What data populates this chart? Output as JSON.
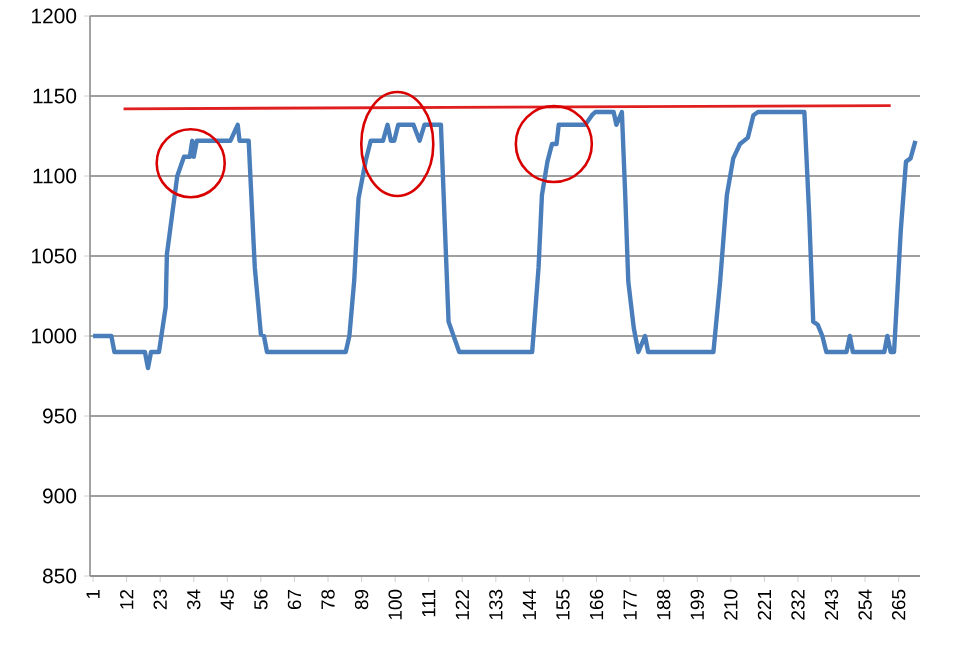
{
  "chart_data": {
    "type": "line",
    "xlim": [
      0,
      272
    ],
    "ylim": [
      850,
      1200
    ],
    "xticks": [
      1,
      12,
      23,
      34,
      45,
      56,
      67,
      78,
      89,
      100,
      111,
      122,
      133,
      144,
      155,
      166,
      177,
      188,
      199,
      210,
      221,
      232,
      243,
      254,
      265
    ],
    "yticks": [
      850,
      900,
      950,
      1000,
      1050,
      1100,
      1150,
      1200
    ],
    "grid": "y",
    "marker": "none",
    "line_style": "solid",
    "series": [
      {
        "color": "#4a7ebb",
        "x": [
          1,
          7,
          8,
          18,
          19,
          20,
          22.6,
          24.8,
          25.2,
          27,
          28.6,
          30.8,
          32.7,
          33.5,
          34,
          35,
          46,
          48.4,
          49,
          52,
          54,
          56,
          57,
          58,
          83.8,
          85,
          86.6,
          88,
          90.4,
          92,
          96,
          97.5,
          98.6,
          99.7,
          101,
          106,
          108,
          109.6,
          115,
          117.5,
          121,
          144.9,
          147,
          148.1,
          149.9,
          151.4,
          152.9,
          153.6,
          162.3,
          164.5,
          165.6,
          171.6,
          172.5,
          174.3,
          175.4,
          176.4,
          178.2,
          179.7,
          181.9,
          182.9,
          204.3,
          206.5,
          208.7,
          210.8,
          213,
          215.6,
          217.4,
          218.9,
          234.1,
          235.7,
          237,
          238.5,
          240,
          241.3,
          247.9,
          249,
          250,
          260.3,
          261.3,
          262.4,
          263.5,
          265.7,
          267.4,
          268.9,
          270.5
        ],
        "values": [
          1000,
          1000,
          990,
          990,
          980,
          990,
          990,
          1018,
          1051,
          1077,
          1100,
          1112,
          1112,
          1122,
          1112,
          1122,
          1122,
          1132,
          1122,
          1122,
          1043,
          1001,
          1000,
          990,
          990,
          1000,
          1035,
          1086,
          1110,
          1122,
          1122,
          1132,
          1122,
          1122,
          1132,
          1132,
          1122,
          1132,
          1132,
          1009,
          990,
          990,
          1043,
          1088,
          1109,
          1120,
          1120,
          1132,
          1132,
          1138,
          1140,
          1140,
          1132,
          1140,
          1088,
          1034,
          1005,
          990,
          1000,
          990,
          990,
          1034,
          1088,
          1111,
          1120,
          1124,
          1138,
          1140,
          1140,
          1075,
          1009,
          1007,
          1000,
          990,
          990,
          1000,
          990,
          990,
          1000,
          990,
          990,
          1066,
          1109,
          1111,
          1122
        ]
      },
      {
        "color": "#e02020",
        "x": [
          11,
          262.4
        ],
        "values": [
          1142,
          1144
        ]
      }
    ]
  }
}
